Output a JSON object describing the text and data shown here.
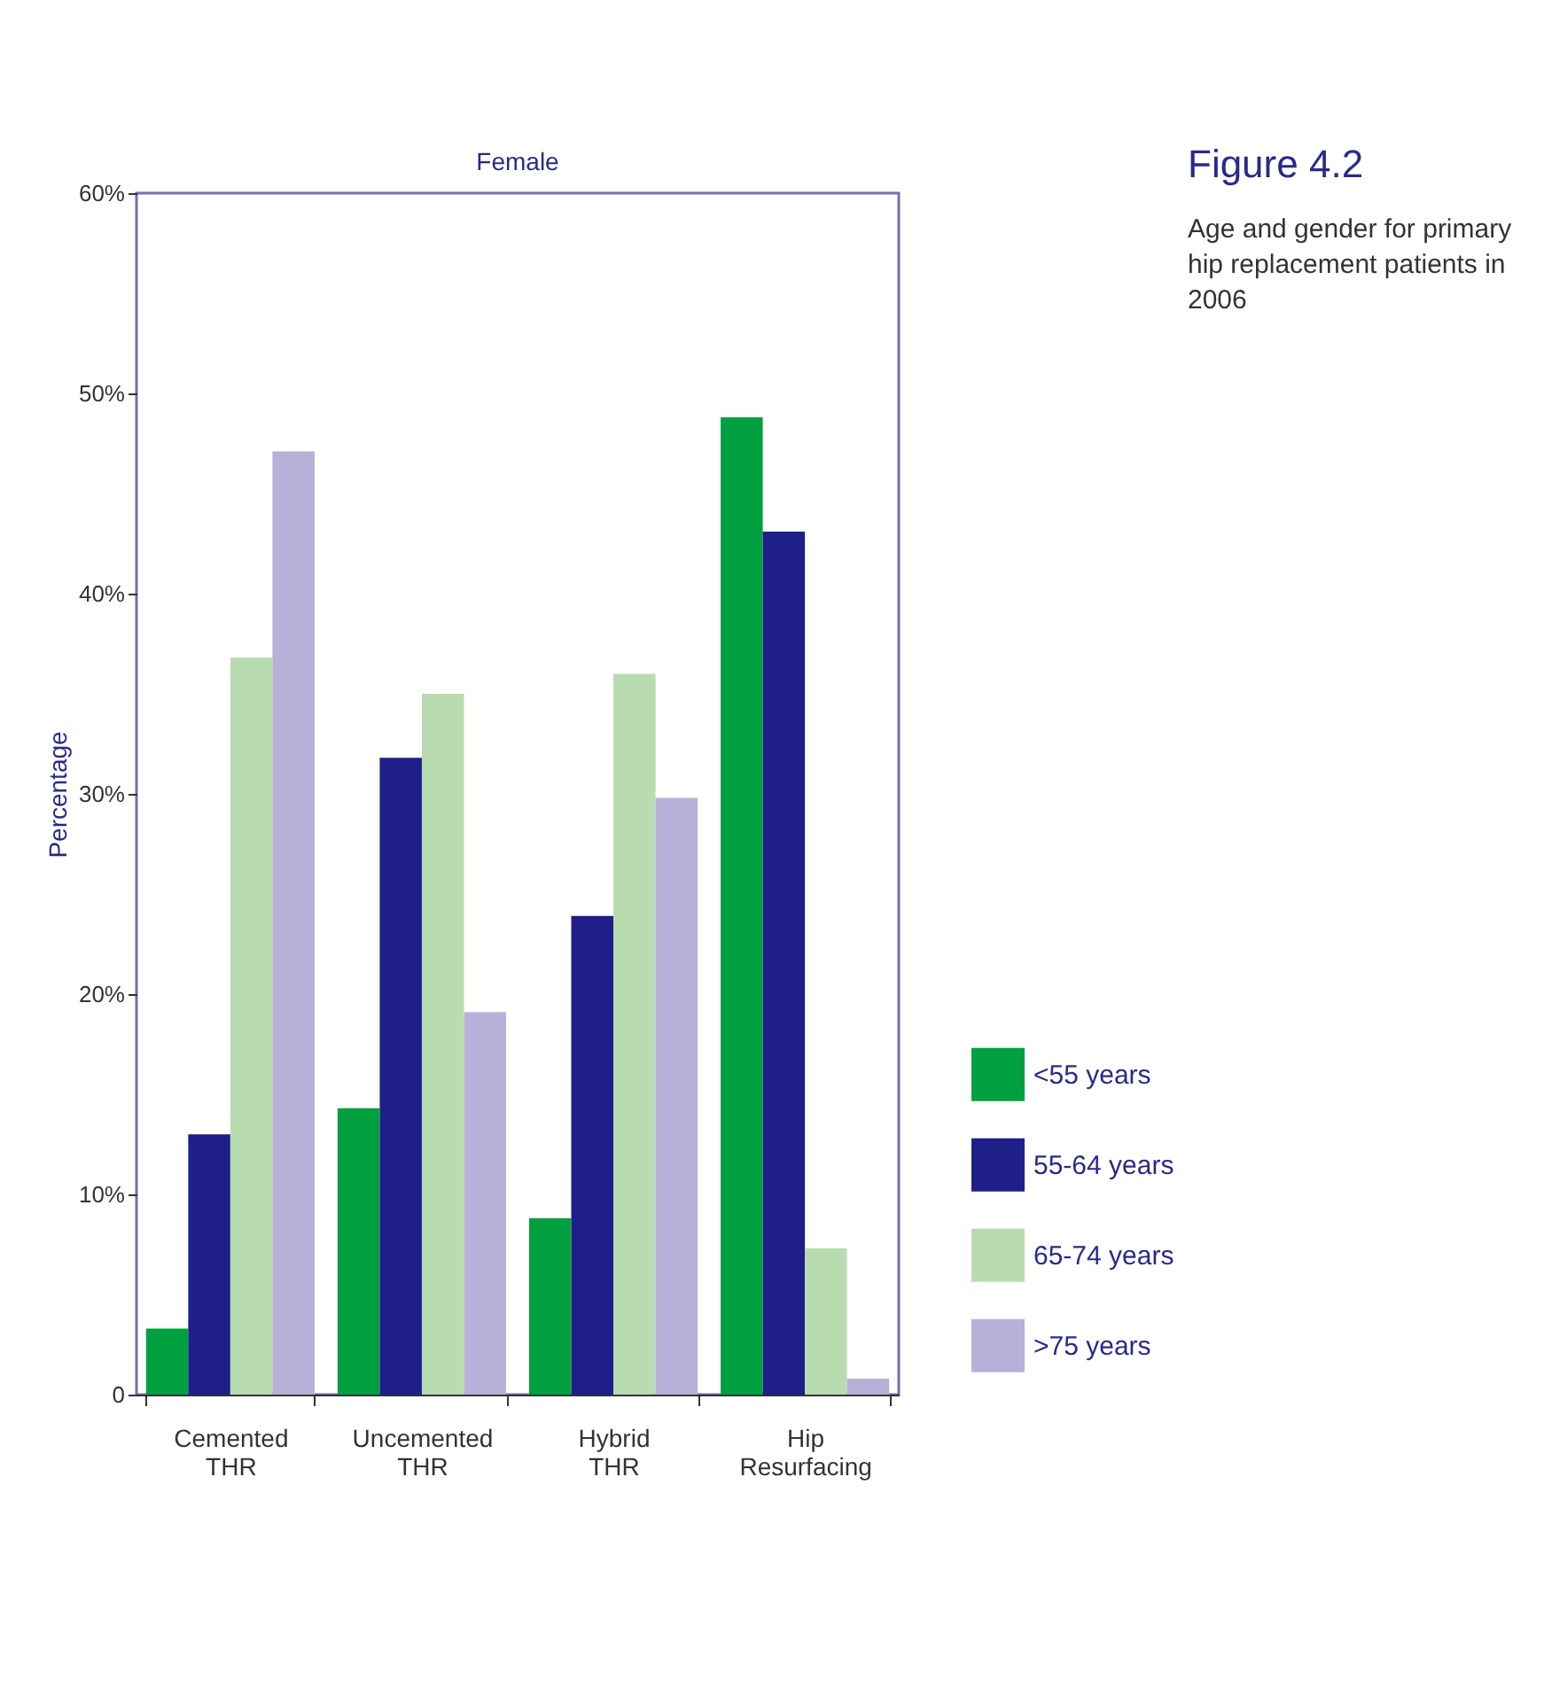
{
  "chart_data": {
    "type": "bar",
    "title": "Female",
    "xlabel": null,
    "ylabel": "Percentage",
    "annotations": [
      "Figure 4.2",
      "Age and gender for primary hip replacement patients in 2006"
    ],
    "categories": [
      "Cemented THR",
      "Uncemented THR",
      "Hybrid THR",
      "Hip Resurfacing"
    ],
    "series": [
      {
        "name": "<55 years",
        "color": "#00a040",
        "values": [
          3.3,
          14.3,
          8.8,
          48.8
        ]
      },
      {
        "name": "55-64 years",
        "color": "#1f1f8a",
        "values": [
          13.0,
          31.8,
          23.9,
          43.1
        ]
      },
      {
        "name": "65-74 years",
        "color": "#b8dcb0",
        "values": [
          36.8,
          35.0,
          36.0,
          7.3
        ]
      },
      {
        "name": ">75 years",
        "color": "#b8b0d8",
        "values": [
          47.1,
          19.1,
          29.8,
          0.8
        ]
      }
    ],
    "ylim": [
      0,
      60
    ],
    "yticks": [
      {
        "value": 0,
        "label": "0"
      },
      {
        "value": 10,
        "label": "10%"
      },
      {
        "value": 20,
        "label": "20%"
      },
      {
        "value": 30,
        "label": "30%"
      },
      {
        "value": 40,
        "label": "40%"
      },
      {
        "value": 50,
        "label": "50%"
      },
      {
        "value": 60,
        "label": "60%"
      }
    ],
    "grid": false,
    "legend": "right"
  }
}
